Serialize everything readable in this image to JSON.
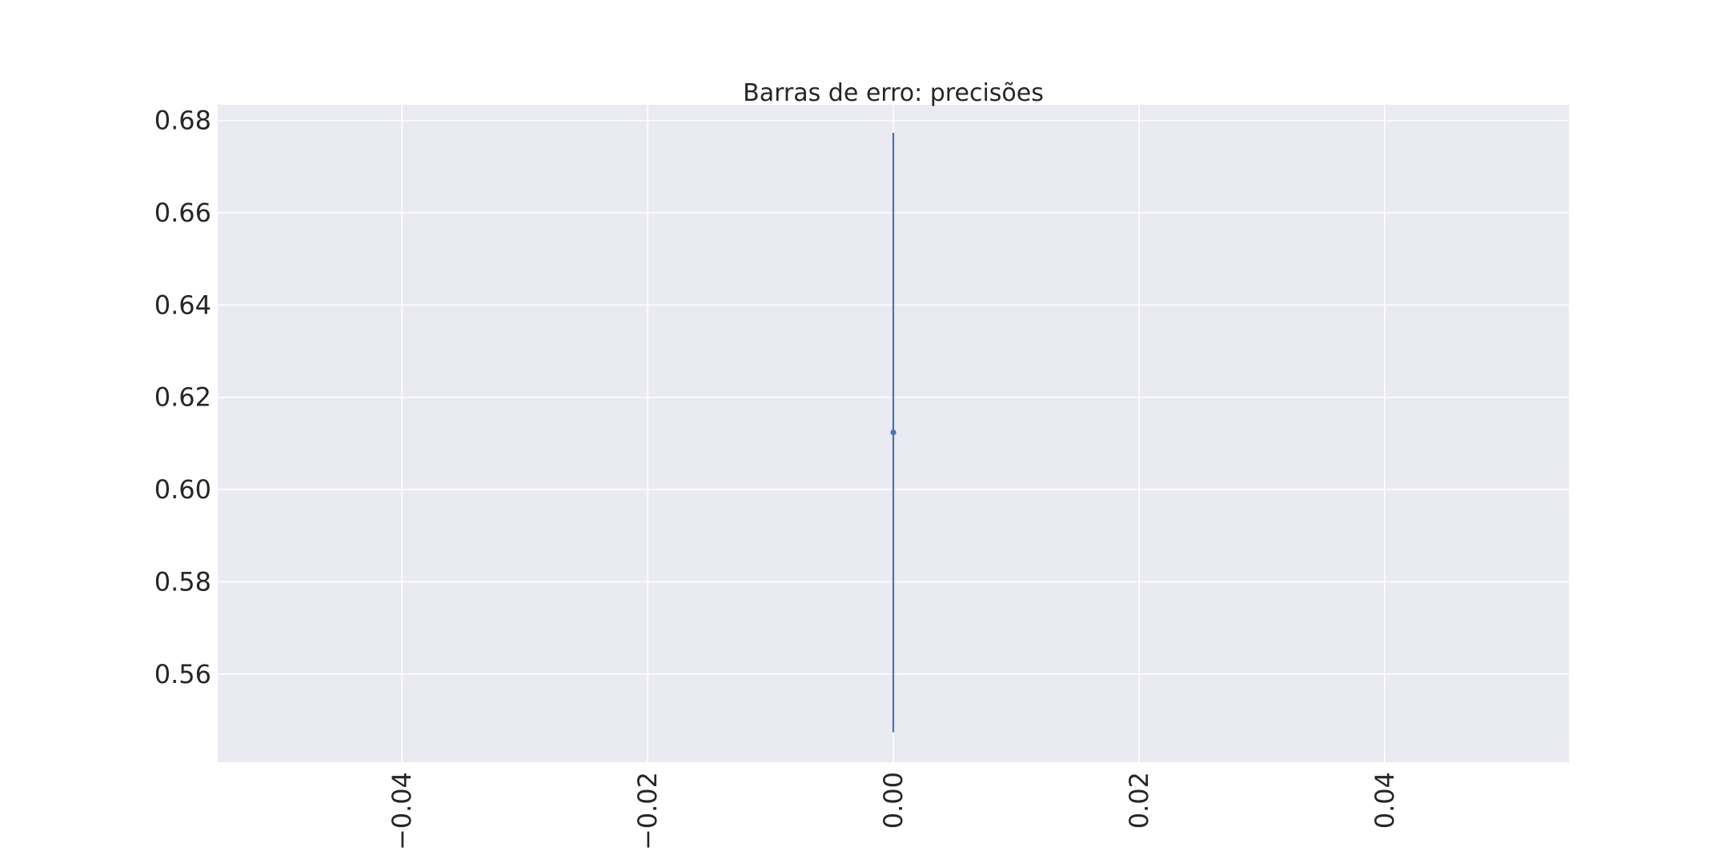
{
  "chart_data": {
    "type": "scatter",
    "title": "Barras de erro: precisões",
    "xlabel": "",
    "ylabel": "",
    "xlim": [
      -0.055,
      0.055
    ],
    "ylim": [
      0.5409,
      0.6834
    ],
    "x_ticks": [
      -0.04,
      -0.02,
      0.0,
      0.02,
      0.04
    ],
    "x_tick_labels": [
      "−0.04",
      "−0.02",
      "0.00",
      "0.02",
      "0.04"
    ],
    "x_tick_rotation": 90,
    "y_ticks": [
      0.56,
      0.58,
      0.6,
      0.62,
      0.64,
      0.66,
      0.68
    ],
    "y_tick_labels": [
      "0.56",
      "0.58",
      "0.60",
      "0.62",
      "0.64",
      "0.66",
      "0.68"
    ],
    "grid": true,
    "series": [
      {
        "color": "#4c72b0",
        "points": [
          {
            "x": 0.0,
            "y": 0.6124,
            "yerr_low": 0.5474,
            "yerr_high": 0.6773
          }
        ]
      }
    ],
    "colors": {
      "plot_background": "#eaeaf2",
      "grid": "#ffffff",
      "text": "#262626",
      "series": "#4c72b0"
    }
  }
}
